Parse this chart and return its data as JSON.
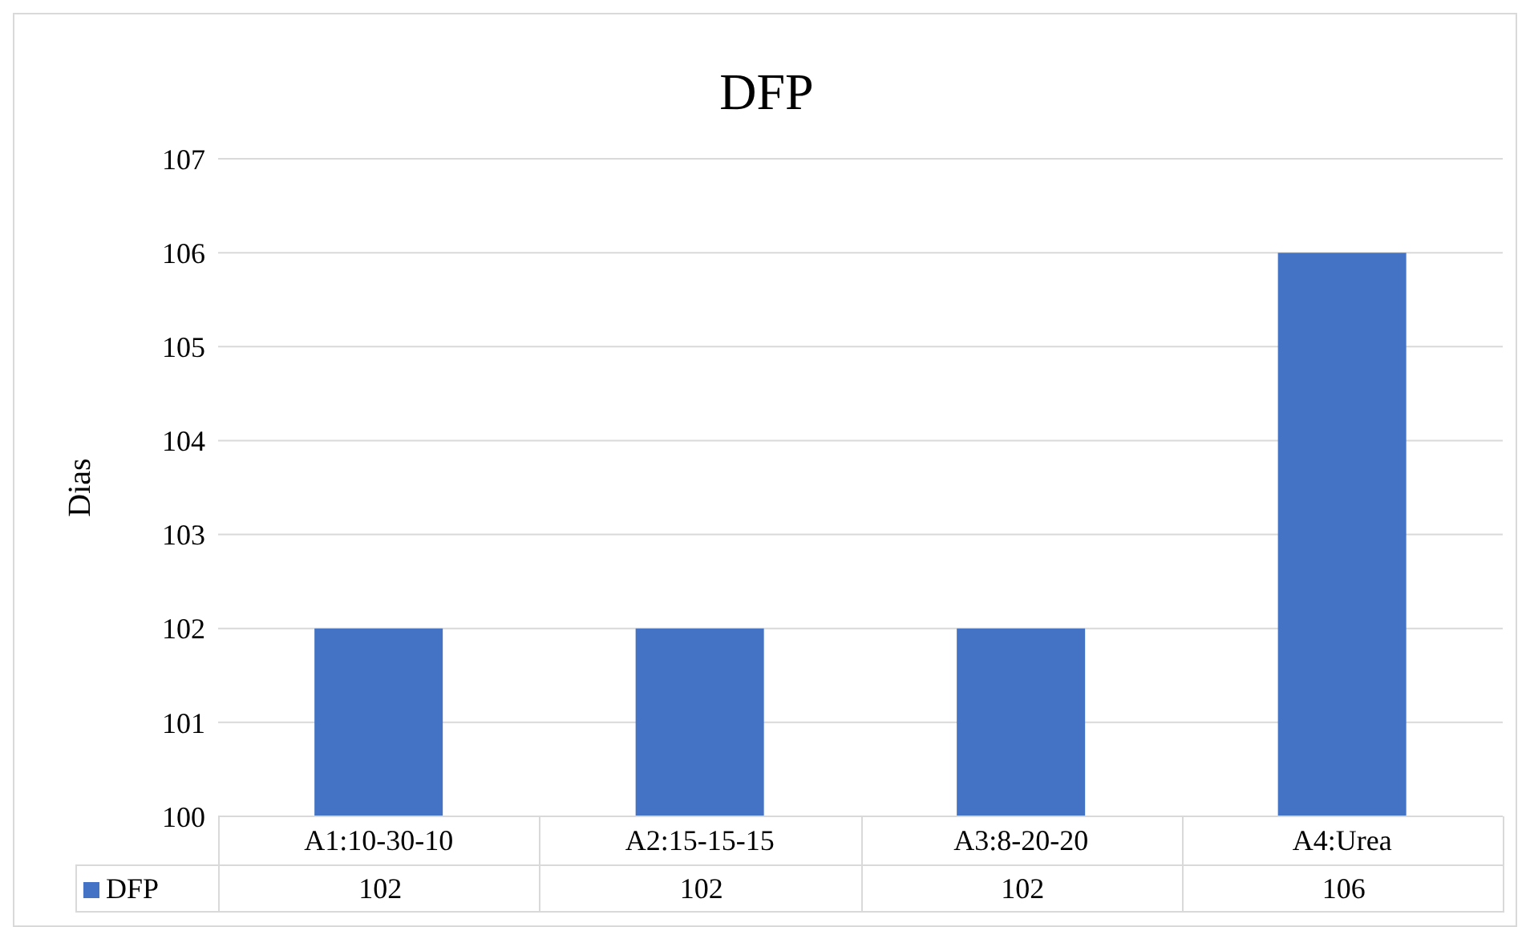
{
  "chart_data": {
    "type": "bar",
    "title": "DFP",
    "ylabel": "Dias",
    "categories": [
      "A1:10-30-10",
      "A2:15-15-15",
      "A3:8-20-20",
      "A4:Urea"
    ],
    "series": [
      {
        "name": "DFP",
        "color": "#4472c4",
        "values": [
          102,
          102,
          102,
          106
        ]
      }
    ],
    "ylim": [
      100,
      107
    ],
    "yticks": [
      100,
      101,
      102,
      103,
      104,
      105,
      106,
      107
    ],
    "grid": "y",
    "legend": "bottom",
    "data_labels": true
  }
}
